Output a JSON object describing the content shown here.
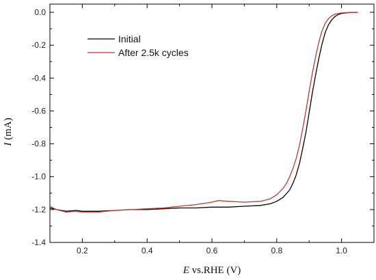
{
  "chart_data": {
    "type": "line",
    "title": "",
    "xlabel_symbol": "E",
    "xlabel_rest": " vs.RHE (V)",
    "ylabel_symbol": "I",
    "ylabel_rest": " (mA)",
    "xlim": [
      0.1,
      1.1
    ],
    "ylim": [
      -1.4,
      0.05
    ],
    "x_ticks": [
      0.2,
      0.4,
      0.6,
      0.8,
      1.0
    ],
    "x_tick_labels": [
      "0.2",
      "0.4",
      "0.6",
      "0.8",
      "1.0"
    ],
    "y_ticks": [
      0.0,
      -0.2,
      -0.4,
      -0.6,
      -0.8,
      -1.0,
      -1.2,
      -1.4
    ],
    "y_tick_labels": [
      "0.0",
      "-0.2",
      "-0.4",
      "-0.6",
      "-0.8",
      "-1.0",
      "-1.2",
      "-1.4"
    ],
    "grid": false,
    "legend_position": "top-left",
    "series": [
      {
        "name": "Initial",
        "color": "#000000",
        "x": [
          0.1,
          0.12,
          0.15,
          0.18,
          0.2,
          0.25,
          0.3,
          0.35,
          0.4,
          0.45,
          0.5,
          0.55,
          0.6,
          0.65,
          0.7,
          0.75,
          0.78,
          0.8,
          0.82,
          0.84,
          0.85,
          0.86,
          0.87,
          0.88,
          0.89,
          0.9,
          0.91,
          0.92,
          0.93,
          0.94,
          0.95,
          0.96,
          0.97,
          0.98,
          0.99,
          1.0,
          1.02,
          1.05
        ],
        "y": [
          -1.19,
          -1.2,
          -1.21,
          -1.205,
          -1.21,
          -1.21,
          -1.205,
          -1.2,
          -1.2,
          -1.195,
          -1.19,
          -1.19,
          -1.185,
          -1.185,
          -1.18,
          -1.175,
          -1.165,
          -1.15,
          -1.125,
          -1.08,
          -1.04,
          -0.99,
          -0.92,
          -0.83,
          -0.73,
          -0.61,
          -0.49,
          -0.38,
          -0.28,
          -0.19,
          -0.12,
          -0.075,
          -0.045,
          -0.025,
          -0.013,
          -0.007,
          -0.002,
          0.0
        ]
      },
      {
        "name": "After 2.5k cycles",
        "color": "#c0392b",
        "x": [
          0.1,
          0.12,
          0.15,
          0.18,
          0.2,
          0.25,
          0.3,
          0.35,
          0.4,
          0.45,
          0.5,
          0.55,
          0.6,
          0.62,
          0.65,
          0.7,
          0.75,
          0.78,
          0.8,
          0.82,
          0.83,
          0.84,
          0.85,
          0.86,
          0.87,
          0.88,
          0.89,
          0.9,
          0.91,
          0.92,
          0.93,
          0.94,
          0.95,
          0.96,
          0.97,
          0.98,
          1.0,
          1.02,
          1.05
        ],
        "y": [
          -1.18,
          -1.2,
          -1.215,
          -1.21,
          -1.215,
          -1.215,
          -1.205,
          -1.2,
          -1.195,
          -1.19,
          -1.18,
          -1.17,
          -1.155,
          -1.145,
          -1.15,
          -1.155,
          -1.15,
          -1.135,
          -1.11,
          -1.07,
          -1.04,
          -1.0,
          -0.95,
          -0.89,
          -0.81,
          -0.71,
          -0.6,
          -0.48,
          -0.37,
          -0.27,
          -0.18,
          -0.11,
          -0.065,
          -0.038,
          -0.021,
          -0.011,
          -0.004,
          -0.001,
          0.0
        ]
      }
    ]
  }
}
